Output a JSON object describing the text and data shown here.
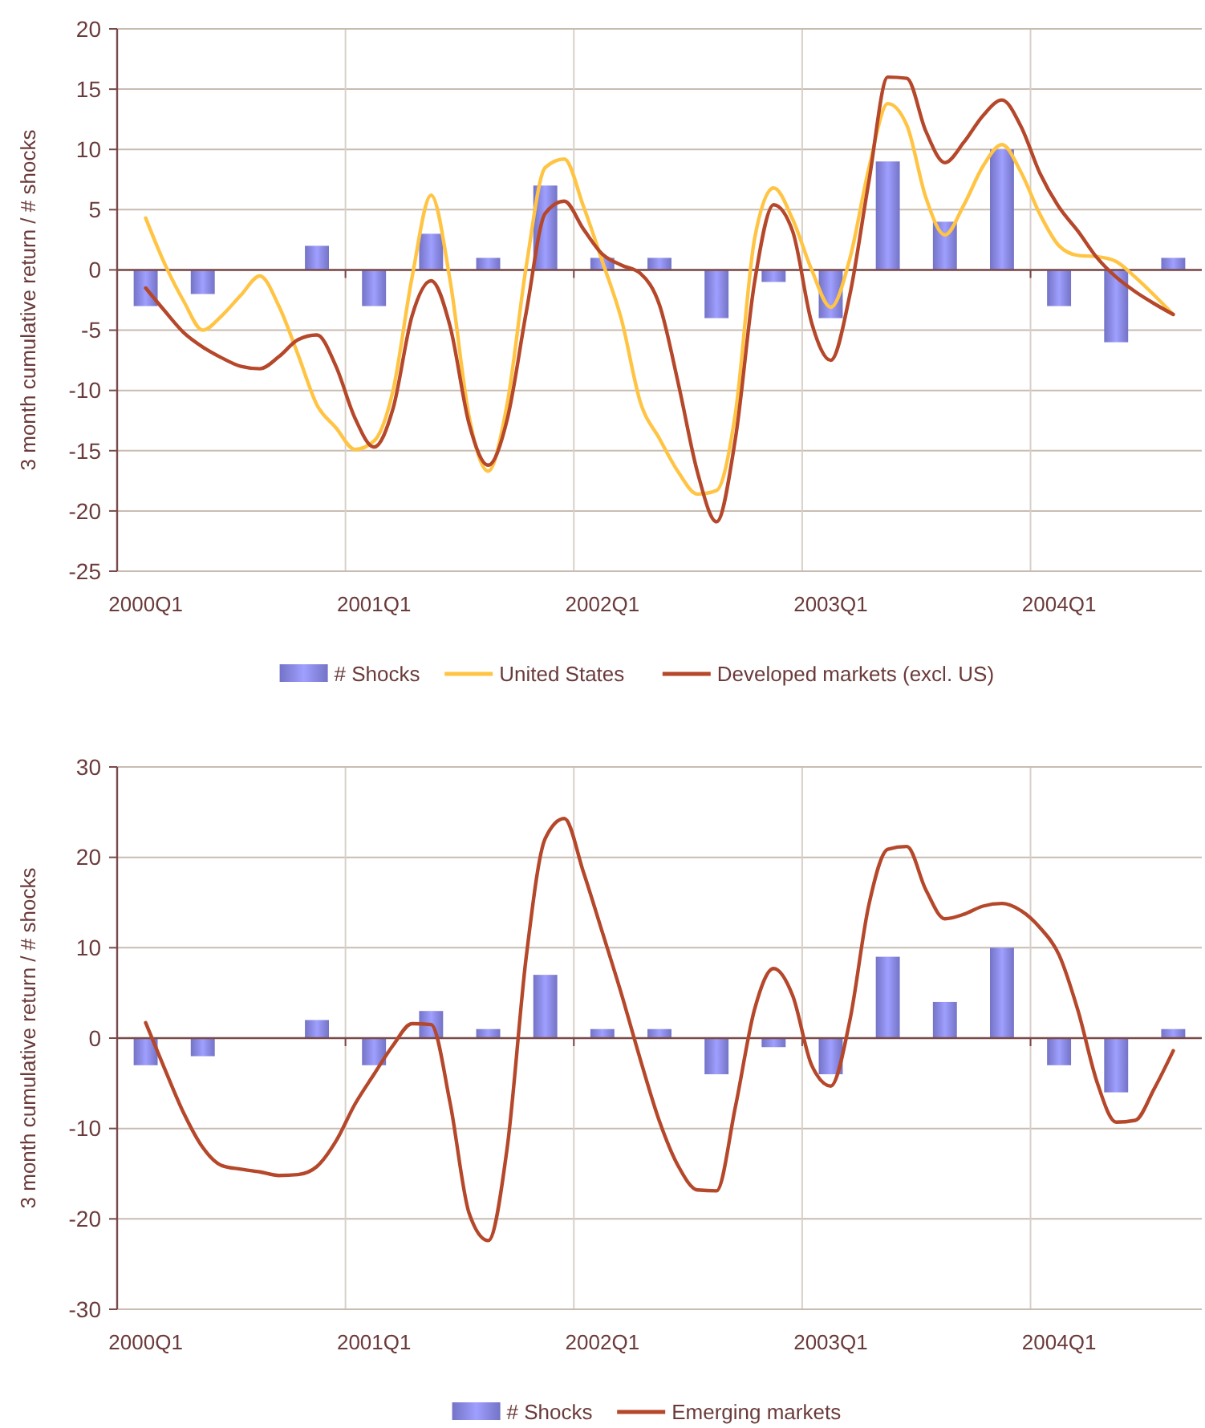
{
  "chart_data": [
    {
      "type": "bar",
      "ylabel": "3 month cumulative return / # shocks",
      "categories": [
        null,
        "2000Q1",
        null,
        null,
        null,
        null,
        null,
        null,
        null,
        null,
        null,
        null,
        null,
        "2001Q1",
        null,
        null,
        null,
        null,
        null,
        null,
        null,
        null,
        null,
        null,
        null,
        "2002Q1",
        null,
        null,
        null,
        null,
        null,
        null,
        null,
        null,
        null,
        null,
        null,
        "2003Q1",
        null,
        null,
        null,
        null,
        null,
        null,
        null,
        null,
        null,
        null,
        null,
        "2004Q1",
        null,
        null,
        null,
        null,
        null,
        null,
        null
      ],
      "ylim": [
        -25,
        20
      ],
      "yticks": [
        -25,
        -20,
        -15,
        -10,
        -5,
        0,
        5,
        10,
        15,
        20
      ],
      "grid": true,
      "legend": "bottom",
      "ref_lines": [
        {
          "axis": "y",
          "value": 0,
          "color": "#7a4a4a"
        }
      ],
      "series": [
        {
          "name": "# Shocks",
          "color": "#8f8ff5",
          "values": [
            null,
            -3,
            null,
            null,
            -2,
            null,
            null,
            0,
            null,
            null,
            2,
            null,
            null,
            -3,
            null,
            null,
            3,
            null,
            null,
            1,
            null,
            null,
            7,
            null,
            null,
            1,
            null,
            null,
            1,
            null,
            null,
            -4,
            null,
            null,
            -1,
            null,
            null,
            -4,
            null,
            null,
            9,
            null,
            null,
            4,
            null,
            null,
            10,
            null,
            null,
            -3,
            null,
            null,
            -6,
            null,
            null,
            1,
            null
          ]
        },
        {
          "name": "United States",
          "type": "line",
          "color": "#ffc444",
          "values": [
            null,
            4.3,
            0.5,
            -2.6,
            -5.0,
            -3.8,
            -2.1,
            -0.5,
            -3.0,
            -7.0,
            -11.2,
            -13.1,
            -14.9,
            -14.2,
            -10.0,
            -0.6,
            6.2,
            -0.9,
            -12.2,
            -16.7,
            -11.1,
            0.3,
            8.5,
            9.2,
            5.3,
            0.7,
            -4.1,
            -11.0,
            -14.0,
            -16.8,
            -18.6,
            -18.3,
            -11.8,
            2.6,
            6.8,
            4.2,
            0.0,
            -3.1,
            0.9,
            8.4,
            13.8,
            12.0,
            6.0,
            2.9,
            5.4,
            8.6,
            10.4,
            8.1,
            4.6,
            2.0,
            1.2,
            1.1,
            0.7,
            -0.6,
            -2.1,
            -3.7,
            null
          ]
        },
        {
          "name": "Developed markets (excl. US)",
          "type": "line",
          "color": "#b5472a",
          "values": [
            null,
            -1.5,
            -3.4,
            -5.2,
            -6.4,
            -7.3,
            -8.0,
            -8.2,
            -7.2,
            -5.8,
            -5.4,
            -8.0,
            -12.3,
            -14.7,
            -11.5,
            -3.8,
            -0.9,
            -4.7,
            -12.8,
            -16.2,
            -12.4,
            -3.5,
            4.7,
            5.7,
            3.4,
            1.3,
            0.4,
            -0.3,
            -2.9,
            -9.5,
            -16.8,
            -20.9,
            -13.9,
            -1.0,
            5.4,
            3.2,
            -4.4,
            -7.5,
            -2.1,
            7.3,
            16.0,
            15.9,
            11.5,
            8.9,
            10.6,
            12.8,
            14.1,
            11.9,
            8.0,
            5.2,
            3.2,
            1.0,
            -0.6,
            -1.8,
            -2.8,
            -3.7,
            null
          ]
        }
      ]
    },
    {
      "type": "bar",
      "ylabel": "3 month cumulative return / # shocks",
      "categories": [
        null,
        "2000Q1",
        null,
        null,
        null,
        null,
        null,
        null,
        null,
        null,
        null,
        null,
        null,
        "2001Q1",
        null,
        null,
        null,
        null,
        null,
        null,
        null,
        null,
        null,
        null,
        null,
        "2002Q1",
        null,
        null,
        null,
        null,
        null,
        null,
        null,
        null,
        null,
        null,
        null,
        "2003Q1",
        null,
        null,
        null,
        null,
        null,
        null,
        null,
        null,
        null,
        null,
        null,
        "2004Q1",
        null,
        null,
        null,
        null,
        null,
        null,
        null
      ],
      "ylim": [
        -30,
        30
      ],
      "yticks": [
        -30,
        -20,
        -10,
        0,
        10,
        20,
        30
      ],
      "grid": true,
      "legend": "bottom",
      "ref_lines": [
        {
          "axis": "y",
          "value": 0,
          "color": "#7a4a4a"
        }
      ],
      "series": [
        {
          "name": "# Shocks",
          "color": "#8f8ff5",
          "values": [
            null,
            -3,
            null,
            null,
            -2,
            null,
            null,
            0,
            null,
            null,
            2,
            null,
            null,
            -3,
            null,
            null,
            3,
            null,
            null,
            1,
            null,
            null,
            7,
            null,
            null,
            1,
            null,
            null,
            1,
            null,
            null,
            -4,
            null,
            null,
            -1,
            null,
            null,
            -4,
            null,
            null,
            9,
            null,
            null,
            4,
            null,
            null,
            10,
            null,
            null,
            -3,
            null,
            null,
            -6,
            null,
            null,
            1,
            null
          ]
        },
        {
          "name": "Emerging markets",
          "type": "line",
          "color": "#b5472a",
          "values": [
            null,
            1.7,
            -3.4,
            -8.3,
            -12.1,
            -14.1,
            -14.5,
            -14.8,
            -15.2,
            -15.1,
            -14.2,
            -11.4,
            -7.3,
            -4.0,
            -0.8,
            1.6,
            1.5,
            -7.2,
            -19.4,
            -22.4,
            -12.1,
            9.0,
            22.1,
            24.3,
            18.4,
            11.7,
            4.9,
            -2.4,
            -9.2,
            -14.2,
            -16.8,
            -16.9,
            -7.5,
            3.2,
            7.7,
            4.7,
            -3.0,
            -5.3,
            1.9,
            14.7,
            20.9,
            21.2,
            16.4,
            13.2,
            13.7,
            14.6,
            14.9,
            14.1,
            12.2,
            9.2,
            3.0,
            -4.9,
            -9.3,
            -9.1,
            -5.6,
            -1.4,
            null
          ]
        }
      ]
    }
  ]
}
